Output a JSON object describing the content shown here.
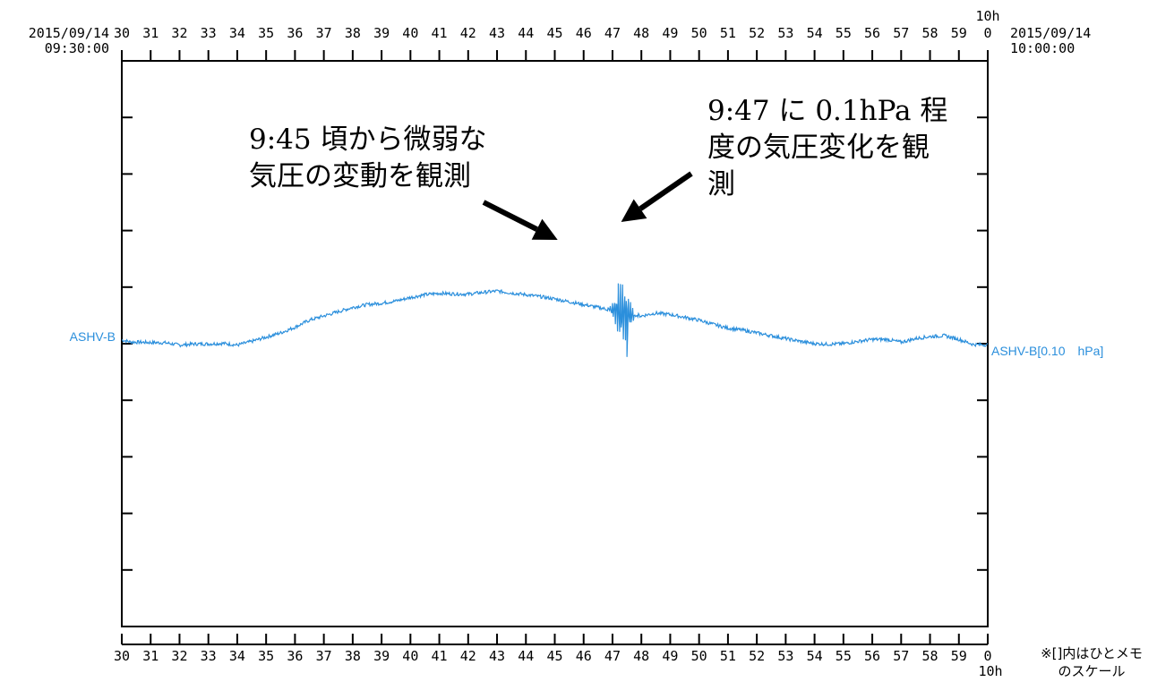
{
  "chart_data": {
    "type": "line",
    "time_axis": {
      "start_date": "2015/09/14",
      "start_time": "09:30:00",
      "end_date": "2015/09/14",
      "end_time": "10:00:00",
      "hour_marker": "10h",
      "tick_labels": [
        "30",
        "31",
        "32",
        "33",
        "34",
        "35",
        "36",
        "37",
        "38",
        "39",
        "40",
        "41",
        "42",
        "43",
        "44",
        "45",
        "46",
        "47",
        "48",
        "49",
        "50",
        "51",
        "52",
        "53",
        "54",
        "55",
        "56",
        "57",
        "58",
        "59",
        "0"
      ]
    },
    "y_divisions": 10,
    "grid": false,
    "series": [
      {
        "name": "ASHV-B",
        "right_label": "ASHV-B[0.10　hPa]",
        "color": "#2b8fdc",
        "points": [
          [
            30.0,
            0.1
          ],
          [
            30.3,
            0.03
          ],
          [
            31.0,
            0.01
          ],
          [
            31.5,
            0.0
          ],
          [
            32.0,
            -0.08
          ],
          [
            32.5,
            -0.04
          ],
          [
            33.0,
            -0.04
          ],
          [
            33.5,
            -0.02
          ],
          [
            34.0,
            -0.08
          ],
          [
            34.5,
            0.05
          ],
          [
            35.0,
            0.2
          ],
          [
            35.5,
            0.35
          ],
          [
            36.0,
            0.55
          ],
          [
            36.5,
            0.8
          ],
          [
            37.0,
            0.95
          ],
          [
            37.5,
            1.1
          ],
          [
            38.0,
            1.25
          ],
          [
            38.5,
            1.35
          ],
          [
            39.0,
            1.4
          ],
          [
            39.5,
            1.48
          ],
          [
            40.0,
            1.6
          ],
          [
            40.5,
            1.7
          ],
          [
            41.0,
            1.75
          ],
          [
            41.5,
            1.73
          ],
          [
            42.0,
            1.72
          ],
          [
            42.5,
            1.78
          ],
          [
            43.0,
            1.83
          ],
          [
            43.5,
            1.76
          ],
          [
            44.0,
            1.7
          ],
          [
            44.5,
            1.63
          ],
          [
            45.0,
            1.55
          ],
          [
            45.5,
            1.45
          ],
          [
            46.0,
            1.35
          ],
          [
            46.5,
            1.25
          ],
          [
            47.0,
            1.15
          ],
          [
            47.5,
            1.0
          ],
          [
            48.0,
            0.95
          ],
          [
            48.5,
            1.05
          ],
          [
            49.0,
            1.0
          ],
          [
            49.5,
            0.9
          ],
          [
            50.0,
            0.8
          ],
          [
            50.5,
            0.65
          ],
          [
            51.0,
            0.52
          ],
          [
            51.5,
            0.45
          ],
          [
            52.0,
            0.35
          ],
          [
            52.5,
            0.25
          ],
          [
            53.0,
            0.15
          ],
          [
            53.5,
            0.05
          ],
          [
            54.0,
            -0.03
          ],
          [
            54.5,
            -0.05
          ],
          [
            55.0,
            -0.03
          ],
          [
            55.5,
            0.05
          ],
          [
            56.0,
            0.12
          ],
          [
            56.5,
            0.12
          ],
          [
            57.0,
            0.02
          ],
          [
            57.5,
            0.15
          ],
          [
            58.0,
            0.22
          ],
          [
            58.5,
            0.25
          ],
          [
            59.0,
            0.12
          ],
          [
            59.5,
            -0.06
          ],
          [
            60.0,
            -0.07
          ]
        ],
        "oscillation": {
          "start": 46.7,
          "end": 47.9,
          "peak": 2.1,
          "peak_at": 47.2,
          "trough": -0.5,
          "trough_at": 47.5
        }
      }
    ],
    "annotations": [
      {
        "text": "9:45 頃から微弱な\n気圧の変動を観測",
        "arrow_to": 45.1
      },
      {
        "text": "9:47 に 0.1hPa 程\n度の気圧変化を観\n測",
        "arrow_to": 47.3
      }
    ]
  },
  "footnote": "※[]内はひとメモ\nのスケール"
}
